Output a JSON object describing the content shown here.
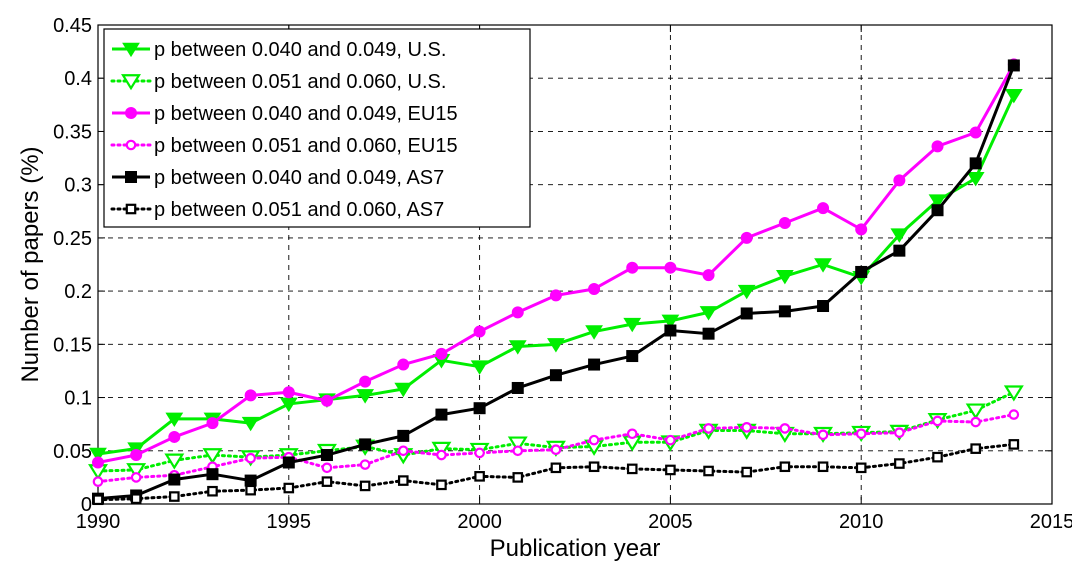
{
  "chart_data": {
    "type": "line",
    "title": "",
    "xlabel": "Publication year",
    "ylabel": "Number of papers (%)",
    "xlim": [
      1990,
      2015
    ],
    "ylim": [
      0,
      0.45
    ],
    "xticks": [
      "1990",
      "1995",
      "2000",
      "2005",
      "2010",
      "2015"
    ],
    "yticks": [
      "0",
      "0.05",
      "0.1",
      "0.15",
      "0.2",
      "0.25",
      "0.3",
      "0.35",
      "0.4",
      "0.45"
    ],
    "grid": true,
    "legend_position": "top-left",
    "x": [
      1990,
      1991,
      1992,
      1993,
      1994,
      1995,
      1996,
      1997,
      1998,
      1999,
      2000,
      2001,
      2002,
      2003,
      2004,
      2005,
      2006,
      2007,
      2008,
      2009,
      2010,
      2011,
      2012,
      2013,
      2014
    ],
    "series": [
      {
        "name": "p between 0.040 and 0.049, U.S.",
        "color": "#00ee00",
        "style": "solid",
        "marker": "triangle-down",
        "filled": true,
        "values": [
          0.047,
          0.052,
          0.08,
          0.08,
          0.076,
          0.094,
          0.098,
          0.102,
          0.108,
          0.135,
          0.129,
          0.148,
          0.15,
          0.162,
          0.169,
          0.172,
          0.18,
          0.2,
          0.214,
          0.225,
          0.213,
          0.253,
          0.285,
          0.306,
          0.384
        ]
      },
      {
        "name": "p between 0.051 and 0.060, U.S.",
        "color": "#00ee00",
        "style": "dotted",
        "marker": "triangle-down",
        "filled": false,
        "values": [
          0.031,
          0.032,
          0.041,
          0.046,
          0.044,
          0.046,
          0.05,
          0.054,
          0.046,
          0.052,
          0.051,
          0.057,
          0.053,
          0.054,
          0.058,
          0.058,
          0.069,
          0.069,
          0.066,
          0.066,
          0.067,
          0.068,
          0.079,
          0.088,
          0.105
        ]
      },
      {
        "name": "p between 0.040 and 0.049, EU15",
        "color": "#ff00ff",
        "style": "solid",
        "marker": "circle",
        "filled": true,
        "values": [
          0.039,
          0.046,
          0.063,
          0.076,
          0.102,
          0.105,
          0.097,
          0.115,
          0.131,
          0.141,
          0.162,
          0.18,
          0.196,
          0.202,
          0.222,
          0.222,
          0.215,
          0.25,
          0.264,
          0.278,
          0.258,
          0.304,
          0.336,
          0.349,
          0.413
        ]
      },
      {
        "name": "p between 0.051 and 0.060, EU15",
        "color": "#ff00ff",
        "style": "dotted",
        "marker": "circle",
        "filled": false,
        "values": [
          0.021,
          0.025,
          0.027,
          0.035,
          0.043,
          0.044,
          0.034,
          0.037,
          0.05,
          0.046,
          0.048,
          0.05,
          0.051,
          0.06,
          0.066,
          0.06,
          0.071,
          0.072,
          0.071,
          0.065,
          0.066,
          0.067,
          0.078,
          0.077,
          0.084
        ]
      },
      {
        "name": "p between 0.040 and 0.049, AS7",
        "color": "#000000",
        "style": "solid",
        "marker": "square",
        "filled": true,
        "values": [
          0.005,
          0.008,
          0.023,
          0.028,
          0.022,
          0.039,
          0.046,
          0.056,
          0.064,
          0.084,
          0.09,
          0.109,
          0.121,
          0.131,
          0.139,
          0.163,
          0.16,
          0.179,
          0.181,
          0.186,
          0.218,
          0.238,
          0.276,
          0.32,
          0.412
        ]
      },
      {
        "name": "p between 0.051 and 0.060, AS7",
        "color": "#000000",
        "style": "dotted",
        "marker": "square",
        "filled": false,
        "values": [
          0.004,
          0.005,
          0.007,
          0.012,
          0.013,
          0.015,
          0.021,
          0.017,
          0.022,
          0.018,
          0.026,
          0.025,
          0.034,
          0.035,
          0.033,
          0.032,
          0.031,
          0.03,
          0.035,
          0.035,
          0.034,
          0.038,
          0.044,
          0.052,
          0.056
        ]
      }
    ]
  }
}
